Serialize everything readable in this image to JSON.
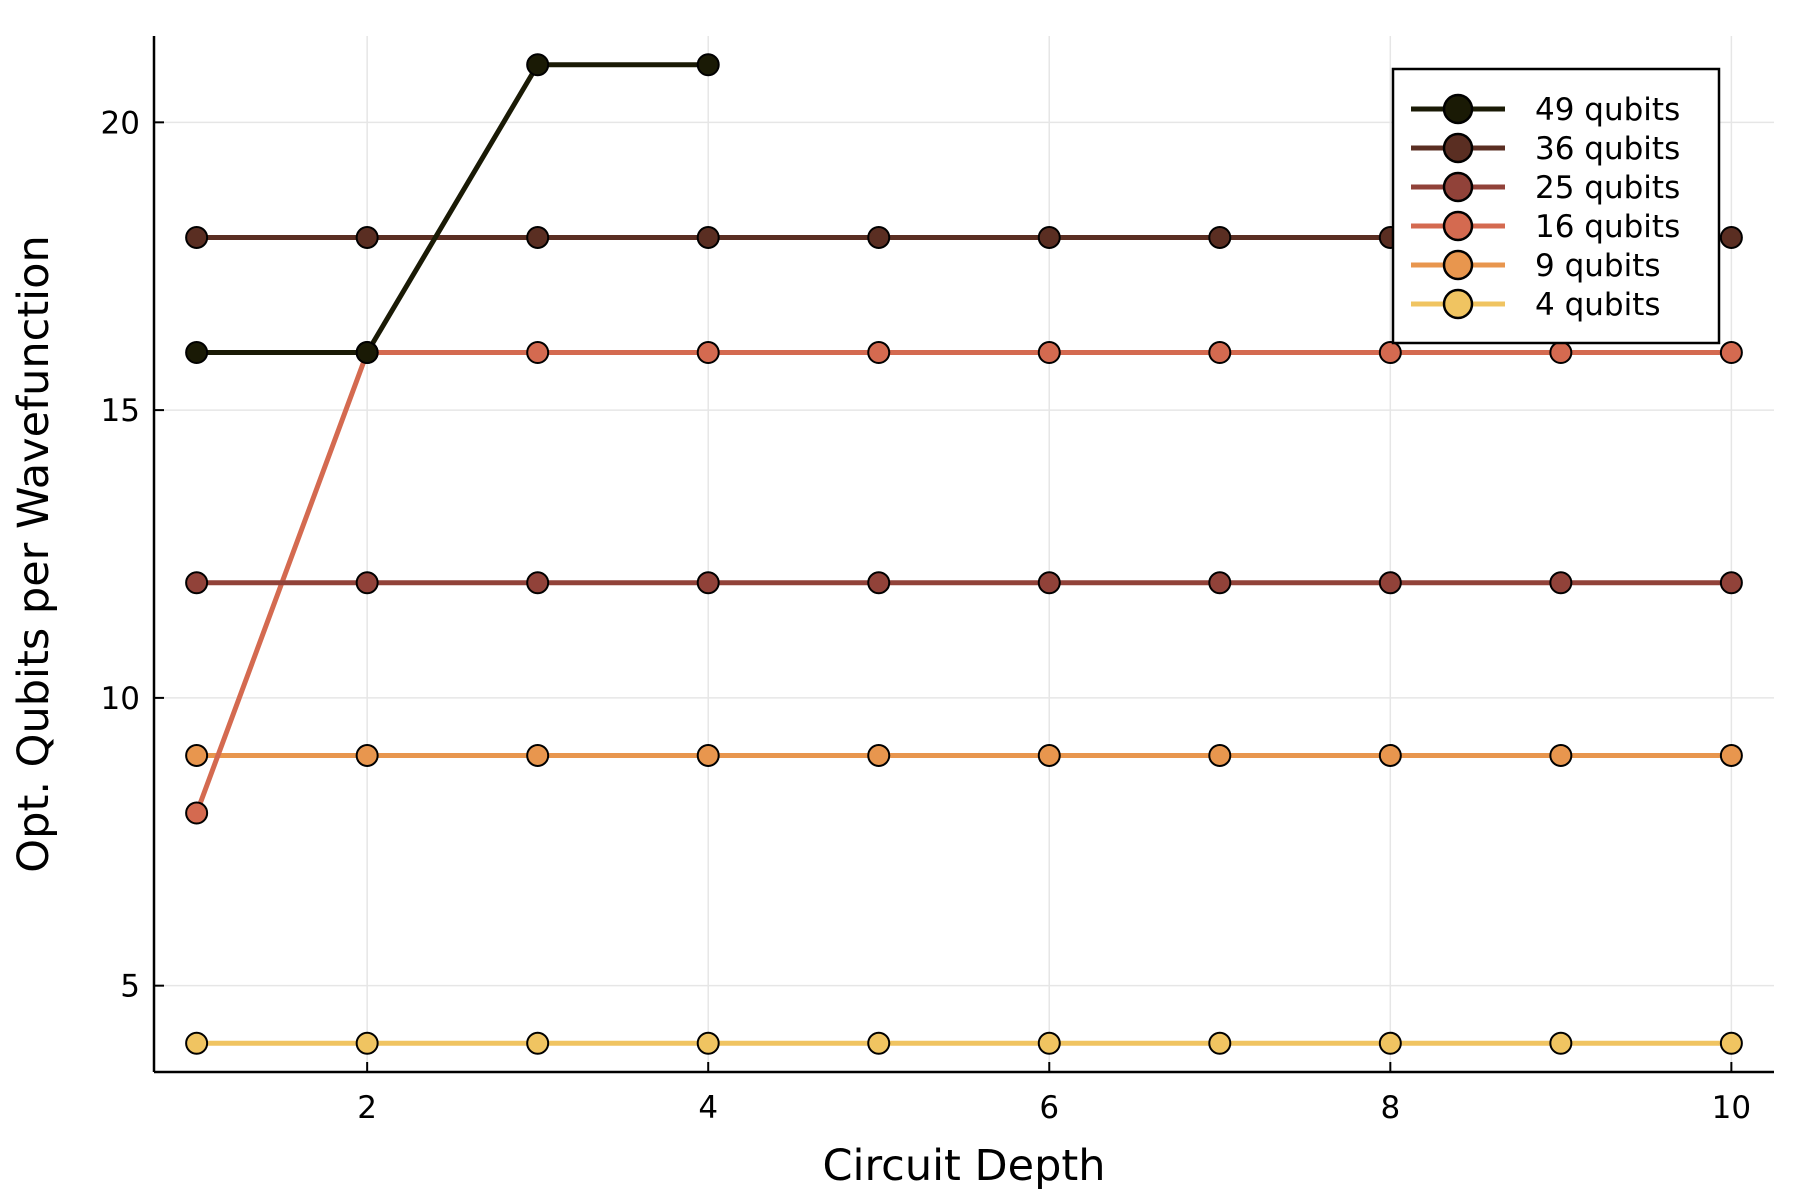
{
  "chart_data": {
    "type": "line",
    "title": "",
    "xlabel": "Circuit Depth",
    "ylabel": "Opt. Qubits per Wavefunction",
    "xlim": [
      0.75,
      10.25
    ],
    "ylim": [
      3.5,
      21.5
    ],
    "x_ticks": [
      2,
      4,
      6,
      8,
      10
    ],
    "y_ticks": [
      5,
      10,
      15,
      20
    ],
    "grid": true,
    "legend_position": "top-right",
    "series": [
      {
        "name": "49 qubits",
        "color": "#1a1a05",
        "x": [
          1,
          2,
          3,
          4
        ],
        "values": [
          16,
          16,
          21,
          21
        ]
      },
      {
        "name": "36 qubits",
        "color": "#5a2e22",
        "x": [
          1,
          2,
          3,
          4,
          5,
          6,
          7,
          8,
          9,
          10
        ],
        "values": [
          18,
          18,
          18,
          18,
          18,
          18,
          18,
          18,
          18,
          18
        ]
      },
      {
        "name": "25 qubits",
        "color": "#914239",
        "x": [
          1,
          2,
          3,
          4,
          5,
          6,
          7,
          8,
          9,
          10
        ],
        "values": [
          12,
          12,
          12,
          12,
          12,
          12,
          12,
          12,
          12,
          12
        ]
      },
      {
        "name": "16 qubits",
        "color": "#d46a50",
        "x": [
          1,
          2,
          3,
          4,
          5,
          6,
          7,
          8,
          9,
          10
        ],
        "values": [
          8,
          16,
          16,
          16,
          16,
          16,
          16,
          16,
          16,
          16
        ]
      },
      {
        "name": "9 qubits",
        "color": "#e8964e",
        "x": [
          1,
          2,
          3,
          4,
          5,
          6,
          7,
          8,
          9,
          10
        ],
        "values": [
          9,
          9,
          9,
          9,
          9,
          9,
          9,
          9,
          9,
          9
        ]
      },
      {
        "name": "4 qubits",
        "color": "#f0c461",
        "x": [
          1,
          2,
          3,
          4,
          5,
          6,
          7,
          8,
          9,
          10
        ],
        "values": [
          4,
          4,
          4,
          4,
          4,
          4,
          4,
          4,
          4,
          4
        ]
      }
    ]
  }
}
